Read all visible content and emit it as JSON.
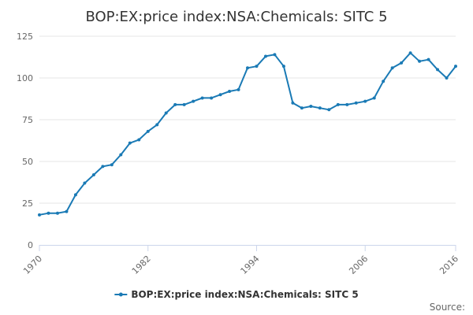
{
  "chart_data": {
    "type": "line",
    "title": "BOP:EX:price index:NSA:Chemicals: SITC 5",
    "xlabel": "",
    "ylabel": "",
    "xlim": [
      1970,
      2016
    ],
    "ylim": [
      0,
      125
    ],
    "yticks": [
      0,
      25,
      50,
      75,
      100,
      125
    ],
    "xticks": [
      "1970",
      "1982",
      "1994",
      "2006",
      "2016"
    ],
    "xtick_values": [
      1970,
      1982,
      1994,
      2006,
      2016
    ],
    "grid": true,
    "legend_position": "bottom-center",
    "series": [
      {
        "name": "BOP:EX:price index:NSA:Chemicals: SITC 5",
        "color": "#1a7ab5",
        "x": [
          1970,
          1971,
          1972,
          1973,
          1974,
          1975,
          1976,
          1977,
          1978,
          1979,
          1980,
          1981,
          1982,
          1983,
          1984,
          1985,
          1986,
          1987,
          1988,
          1989,
          1990,
          1991,
          1992,
          1993,
          1994,
          1995,
          1996,
          1997,
          1998,
          1999,
          2000,
          2001,
          2002,
          2003,
          2004,
          2005,
          2006,
          2007,
          2008,
          2009,
          2010,
          2011,
          2012,
          2013,
          2014,
          2015,
          2016
        ],
        "values": [
          18,
          19,
          19,
          20,
          30,
          37,
          42,
          47,
          48,
          54,
          61,
          63,
          68,
          72,
          79,
          84,
          84,
          86,
          88,
          88,
          90,
          92,
          93,
          106,
          107,
          113,
          114,
          107,
          85,
          82,
          83,
          82,
          81,
          84,
          84,
          85,
          86,
          88,
          98,
          106,
          109,
          115,
          110,
          111,
          105,
          100,
          107
        ]
      }
    ]
  },
  "source_label": "Source:"
}
